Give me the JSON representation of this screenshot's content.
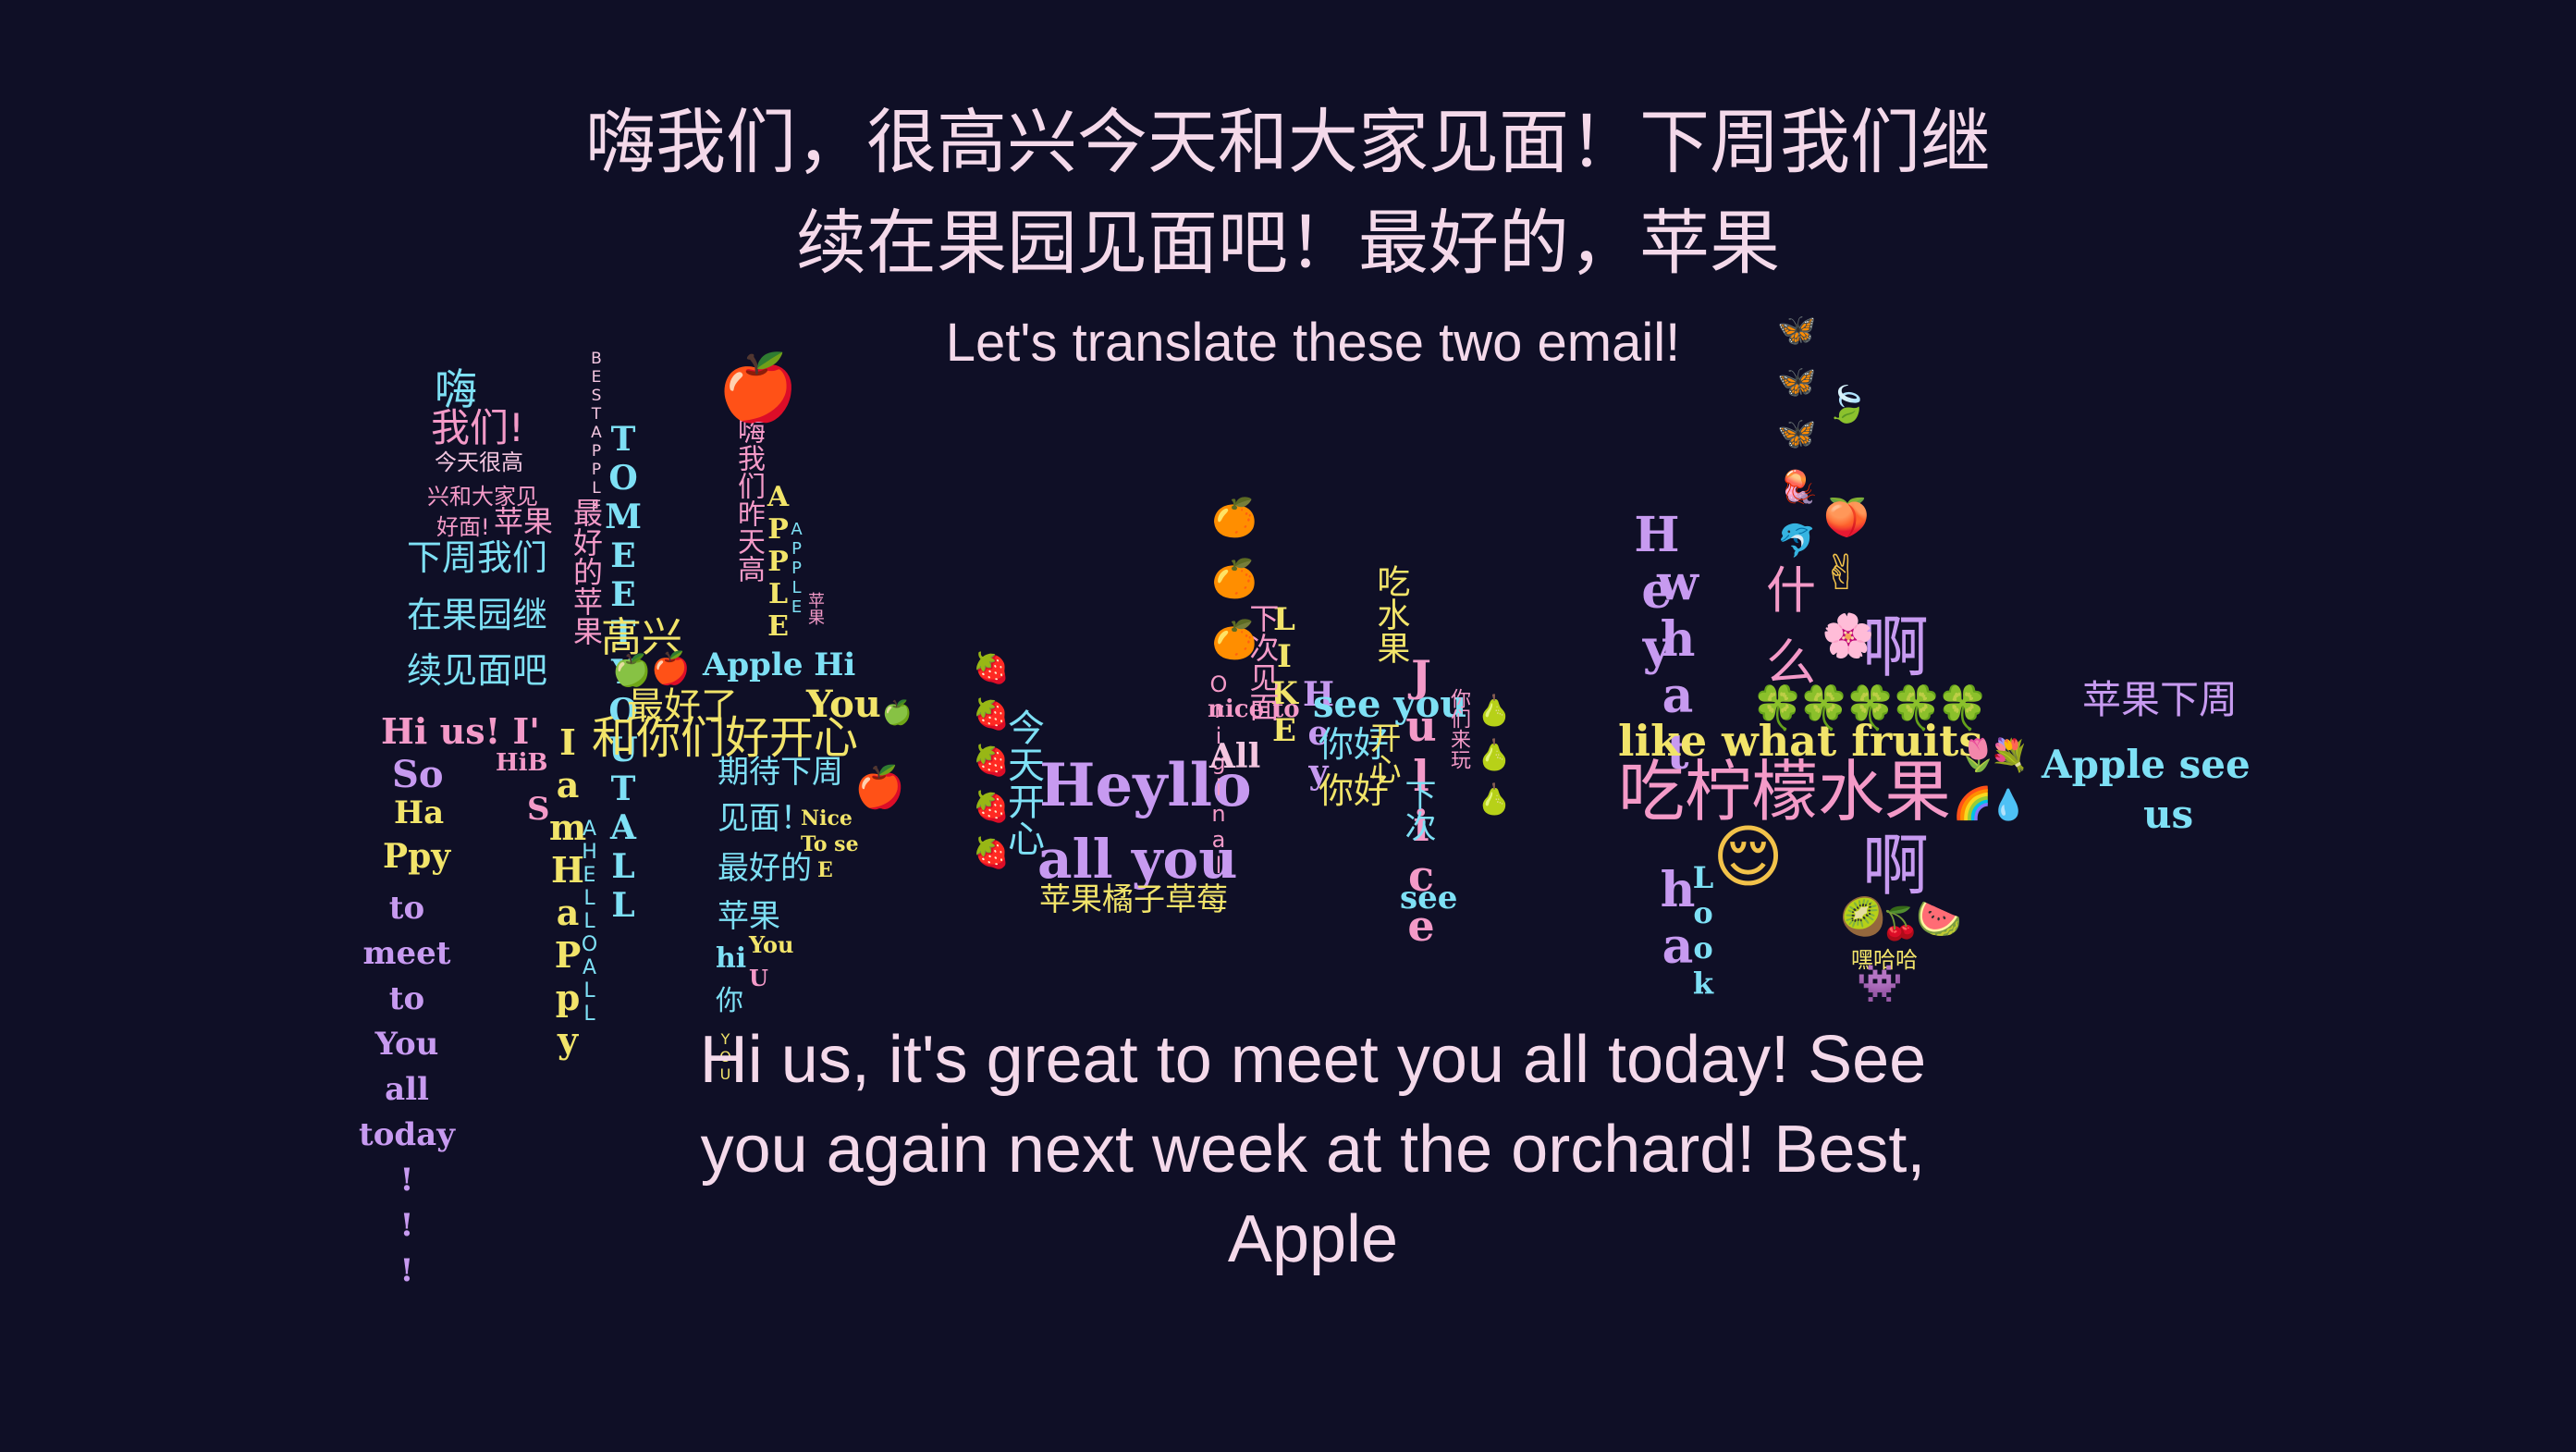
{
  "colors": {
    "background": "#0f0f26",
    "headline": "#f4d9ea",
    "cyan": "#7ee0f5",
    "pink": "#f49ac8",
    "yellow": "#f2e46a",
    "violet": "#c79af0",
    "light_pink": "#f4c6e0"
  },
  "chinese_message": {
    "line1": "嗨我们，很高兴今天和大家见面！下周我们继",
    "line2": "续在果园见面吧！最好的，苹果"
  },
  "prompt": "Let's translate these two email!",
  "english_message": {
    "line1": "Hi us, it's great to meet you all today! See",
    "line2": "you again next week at the orchard! Best,",
    "line3": "Apple"
  },
  "fragments": {
    "hai": "嗨",
    "women": "我们!",
    "jintian_hen_gao": "今天很高",
    "xing_he_dajia": "兴和大家见",
    "hao_mian": "好面!",
    "pingguo_small": "苹果",
    "xiazhou_women": "下周我们",
    "zai_guoyuan_ji": "在果园继",
    "xu_jianmian_ba": "续见面吧",
    "hi_us_im": "Hi us! I'",
    "so": "So",
    "ha": "Ha",
    "ppy": "Ppy",
    "to_meet_col": "to\nmeet\nto\nYou\nall\ntoday\n!\n!\n!",
    "hi_b": "HiB",
    "s": "S",
    "best_tall": "BESTAPPLE",
    "tomeet": "TOMEETYOUTALL",
    "a_m_happy": "I\na\nm\nH\na\nP\np\ny",
    "hello_all": "AHELLOALL",
    "zuihao_pingguo": "最好的苹果",
    "gaoxing": "高兴",
    "zui_hao_le": "最好了",
    "ni_men_hao_kaixin": "你们好开心",
    "he": "和",
    "apple_col": "APPLE",
    "apple_small_col": "APPLE",
    "hi_wo_men": "嗨我们昨天高",
    "apple_hi": "Apple Hi",
    "you": "You",
    "ping_guo_v": "苹果",
    "qidai_xiazhou": "期待下周",
    "jianmian": "见面！",
    "zuihao_de": "最好的",
    "pingguo_mid": "苹果",
    "hi": "hi",
    "ni": "你",
    "you_small": "YOU",
    "you_yellow": "You",
    "u_letter": "U",
    "nice_to_see": "Nice",
    "to_se": "To se",
    "e_letter": "E",
    "jin_tian_kai_xin": "今天开心",
    "heyllo": "Heyllo",
    "all_you": "all you",
    "pingguo_juzi_caomei": "苹果橘子草莓",
    "original": "Original",
    "nice_to": "nice to",
    "all": "All",
    "like_col": "LIKE",
    "xia_ci_jian_mian": "下次见面",
    "hey_col": "Hey",
    "see_you": "see you",
    "ni_hao": "你好",
    "chi_shui_guo": "吃水果",
    "kai_xin": "开心",
    "j_u_l_i_c_e": "Julice",
    "xia_ci": "下次",
    "see_small": "see",
    "u_small": "U",
    "e_small": "e",
    "ni_men_lai_wan": "你们来玩",
    "heyy_col": "Hey",
    "what_col": "what",
    "hat_col": "ha",
    "look_col": "Look",
    "t_col": "t",
    "ha_col": "a",
    "shen": "什",
    "me": "么",
    "a1": "啊",
    "a2": "啊",
    "like_what_fruits": "like what fruits",
    "chi_ningmeng_shuiguo": "吃柠檬水果",
    "heihei": "嘿哈哈",
    "pingguo_xiazhou": "苹果下周",
    "apple_see": "Apple see",
    "us": "us"
  },
  "emojis": {
    "red_apple": "🍎",
    "green_apple": "🍏",
    "strawberry": "🍓",
    "orange": "🍊",
    "pear": "🍐",
    "butterfly": "🦋",
    "leaf": "🍃",
    "jellyfish": "🪼",
    "dolphin": "🐬",
    "peach": "🍑",
    "victory": "✌",
    "blossom": "🌸",
    "clover": "🍀",
    "tulip": "🌷",
    "bouquet": "💐",
    "rainbow": "🌈",
    "droplet": "💧",
    "relieved": "😌",
    "kiwi": "🥝",
    "cherries": "🍒",
    "watermelon": "🍉",
    "alien_monster": "👾"
  }
}
